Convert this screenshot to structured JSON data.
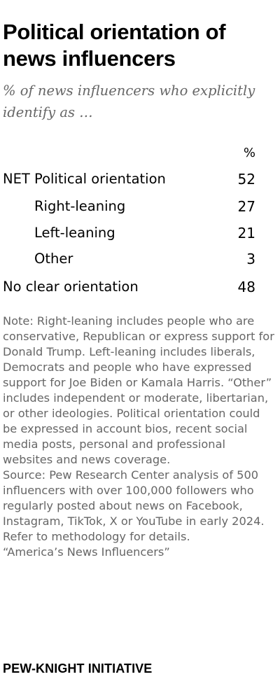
{
  "title": "Political orientation of news influencers",
  "subtitle": "% of news influencers who explicitly identify as …",
  "chart_data": {
    "type": "table",
    "column_header": "%",
    "rows": [
      {
        "label": "NET Political orientation",
        "value": 52,
        "indent": false
      },
      {
        "label": "Right-leaning",
        "value": 27,
        "indent": true
      },
      {
        "label": "Left-leaning",
        "value": 21,
        "indent": true
      },
      {
        "label": "Other",
        "value": 3,
        "indent": true
      },
      {
        "label": "No clear orientation",
        "value": 48,
        "indent": false
      }
    ]
  },
  "note": "Note: Right-leaning includes people who are conservative, Republican or express support for Donald Trump. Left-leaning includes liberals, Democrats and people who have expressed support for Joe Biden or Kamala Harris. “Other” includes independent or moderate, libertarian, or other ideologies. Political orientation could be expressed in account bios, recent social media posts, personal and professional websites and news coverage.",
  "source": "Source: Pew Research Center analysis of 500 influencers with over 100,000 followers who regularly posted about news on Facebook, Instagram, TikTok, X or YouTube in early 2024. Refer to methodology for details.",
  "report": "“America’s News Influencers”",
  "brand": "PEW-KNIGHT INITIATIVE"
}
